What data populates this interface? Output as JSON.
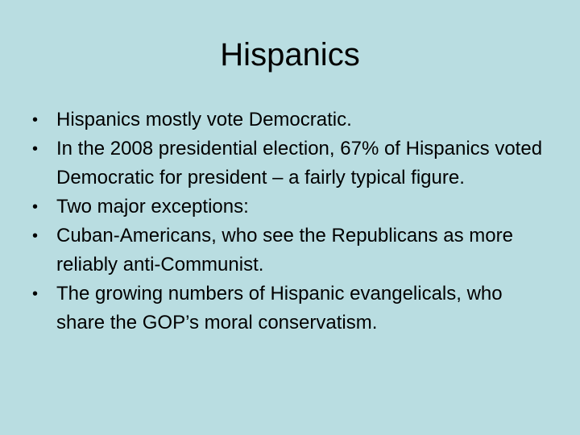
{
  "slide": {
    "title": "Hispanics",
    "bullet_glyph": "•",
    "bullets": [
      "Hispanics mostly vote Democratic.",
      "In the 2008 presidential election, 67% of Hispanics voted Democratic for president – a fairly typical figure.",
      "Two major exceptions:",
      "Cuban-Americans, who see the Republicans as more reliably anti-Communist.",
      "The growing numbers of Hispanic evangelicals, who share the GOP’s moral conservatism."
    ]
  },
  "colors": {
    "background": "#b9dde1",
    "text": "#000000"
  }
}
